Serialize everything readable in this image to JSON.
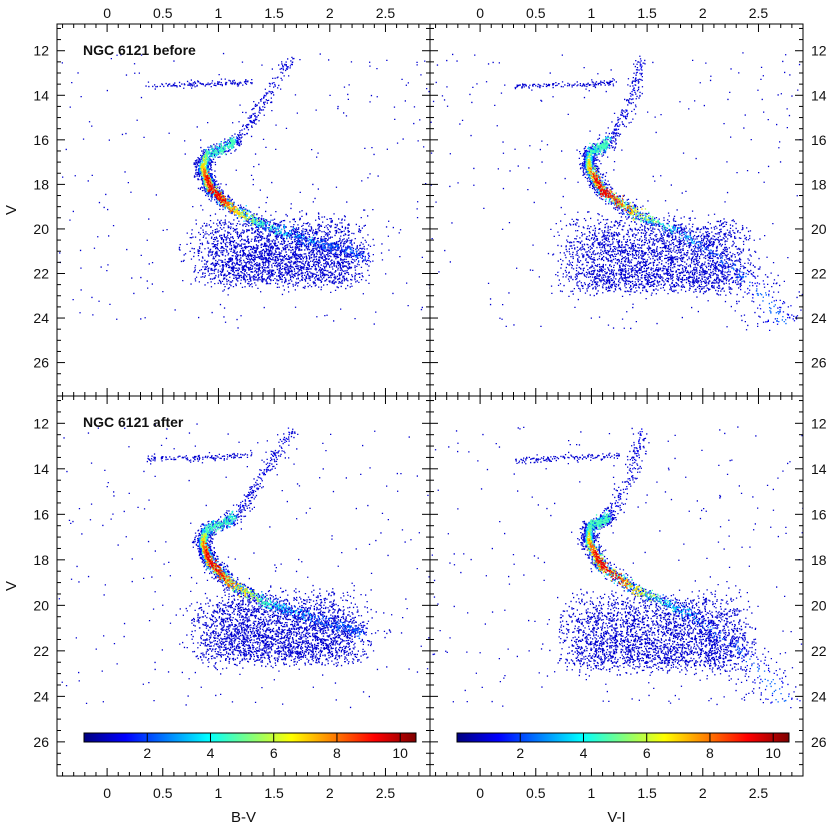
{
  "figure": {
    "description_free": true,
    "colors": {
      "frame": "#000000",
      "colormap": [
        "#00007f",
        "#0000ff",
        "#0080ff",
        "#00ffff",
        "#80ff80",
        "#ffff00",
        "#ff8000",
        "#ff0000",
        "#7f0000"
      ]
    }
  },
  "chart_data": [
    {
      "type": "scatter",
      "panel": "top-left",
      "title": "NGC 6121 before",
      "xlabel": "",
      "ylabel": "V",
      "xlim": [
        -0.45,
        2.9
      ],
      "ylim": [
        27.5,
        10.8
      ],
      "y_inverted": true,
      "xticks": [
        0,
        0.5,
        1,
        1.5,
        2,
        2.5
      ],
      "yticks": [
        12,
        14,
        16,
        18,
        20,
        22,
        24,
        26
      ],
      "ridge": [
        [
          1.65,
          12.3
        ],
        [
          1.5,
          13.4
        ],
        [
          1.35,
          14.6
        ],
        [
          1.22,
          15.6
        ],
        [
          1.08,
          16.3
        ],
        [
          0.9,
          16.6
        ],
        [
          0.85,
          17.2
        ],
        [
          0.92,
          18.1
        ],
        [
          1.1,
          19.0
        ],
        [
          1.4,
          19.8
        ],
        [
          1.75,
          20.4
        ],
        [
          2.1,
          20.9
        ],
        [
          2.3,
          21.2
        ]
      ],
      "hb": [
        [
          0.35,
          13.55
        ],
        [
          1.3,
          13.4
        ]
      ],
      "field_cloud": [
        [
          0.9,
          22.3
        ],
        [
          2.2,
          19.5
        ]
      ],
      "colorbar": null
    },
    {
      "type": "scatter",
      "panel": "top-right",
      "title": "",
      "xlabel": "",
      "ylabel": "",
      "xlim": [
        -0.45,
        2.9
      ],
      "ylim": [
        27.5,
        10.8
      ],
      "y_inverted": true,
      "xticks": [
        0,
        0.5,
        1,
        1.5,
        2,
        2.5
      ],
      "yticks": [
        12,
        14,
        16,
        18,
        20,
        22,
        24,
        26
      ],
      "ridge": [
        [
          1.45,
          12.3
        ],
        [
          1.4,
          13.4
        ],
        [
          1.32,
          14.6
        ],
        [
          1.2,
          15.7
        ],
        [
          1.1,
          16.3
        ],
        [
          0.98,
          16.5
        ],
        [
          0.97,
          17.2
        ],
        [
          1.1,
          18.3
        ],
        [
          1.4,
          19.3
        ],
        [
          1.85,
          20.3
        ],
        [
          2.2,
          21.5
        ],
        [
          2.5,
          22.8
        ],
        [
          2.75,
          24.3
        ]
      ],
      "hb": [
        [
          0.3,
          13.6
        ],
        [
          1.25,
          13.4
        ]
      ],
      "field_cloud": [
        [
          0.85,
          22.6
        ],
        [
          2.3,
          19.5
        ]
      ],
      "colorbar": null
    },
    {
      "type": "scatter",
      "panel": "bottom-left",
      "title": "NGC 6121 after",
      "xlabel": "B-V",
      "ylabel": "V",
      "xlim": [
        -0.45,
        2.9
      ],
      "ylim": [
        27.5,
        10.8
      ],
      "y_inverted": true,
      "xticks": [
        0,
        0.5,
        1,
        1.5,
        2,
        2.5
      ],
      "yticks": [
        12,
        14,
        16,
        18,
        20,
        22,
        24,
        26
      ],
      "ridge": [
        [
          1.65,
          12.3
        ],
        [
          1.5,
          13.4
        ],
        [
          1.35,
          14.6
        ],
        [
          1.22,
          15.6
        ],
        [
          1.08,
          16.3
        ],
        [
          0.9,
          16.6
        ],
        [
          0.85,
          17.2
        ],
        [
          0.92,
          18.1
        ],
        [
          1.1,
          19.0
        ],
        [
          1.4,
          19.8
        ],
        [
          1.75,
          20.4
        ],
        [
          2.1,
          20.9
        ],
        [
          2.3,
          21.2
        ]
      ],
      "hb": [
        [
          0.35,
          13.55
        ],
        [
          1.3,
          13.4
        ]
      ],
      "field_cloud": [
        [
          0.9,
          22.3
        ],
        [
          2.2,
          19.5
        ]
      ],
      "colorbar": {
        "ticks": [
          2,
          4,
          6,
          8,
          10
        ],
        "range": [
          0,
          10.5
        ]
      }
    },
    {
      "type": "scatter",
      "panel": "bottom-right",
      "title": "",
      "xlabel": "V-I",
      "ylabel": "",
      "xlim": [
        -0.45,
        2.9
      ],
      "ylim": [
        27.5,
        10.8
      ],
      "y_inverted": true,
      "xticks": [
        0,
        0.5,
        1,
        1.5,
        2,
        2.5
      ],
      "yticks": [
        12,
        14,
        16,
        18,
        20,
        22,
        24,
        26
      ],
      "ridge": [
        [
          1.45,
          12.3
        ],
        [
          1.4,
          13.4
        ],
        [
          1.32,
          14.6
        ],
        [
          1.2,
          15.7
        ],
        [
          1.1,
          16.3
        ],
        [
          0.98,
          16.5
        ],
        [
          0.97,
          17.2
        ],
        [
          1.1,
          18.3
        ],
        [
          1.4,
          19.3
        ],
        [
          1.85,
          20.3
        ],
        [
          2.2,
          21.5
        ],
        [
          2.5,
          22.8
        ],
        [
          2.75,
          24.3
        ]
      ],
      "hb": [
        [
          0.3,
          13.6
        ],
        [
          1.25,
          13.4
        ]
      ],
      "field_cloud": [
        [
          0.85,
          22.6
        ],
        [
          2.3,
          19.5
        ]
      ],
      "colorbar": {
        "ticks": [
          2,
          4,
          6,
          8,
          10
        ],
        "range": [
          0,
          10.5
        ]
      }
    }
  ]
}
